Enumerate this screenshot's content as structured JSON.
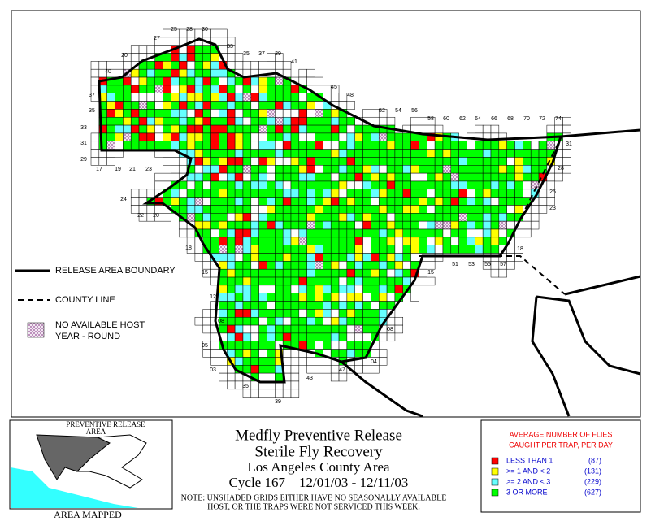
{
  "map": {
    "grid_labels": [
      "25",
      "28",
      "30",
      "27",
      "20",
      "33",
      "35",
      "37",
      "39",
      "41",
      "40",
      "45",
      "48",
      "37",
      "35",
      "33",
      "31",
      "29",
      "17",
      "19",
      "21",
      "23",
      "52",
      "54",
      "56",
      "58",
      "60",
      "62",
      "64",
      "66",
      "68",
      "70",
      "72",
      "74",
      "31",
      "28",
      "25",
      "23",
      "18",
      "51",
      "53",
      "55",
      "57",
      "15",
      "24",
      "22",
      "20",
      "18",
      "15",
      "12",
      "08",
      "05",
      "03",
      "35",
      "39",
      "43",
      "47",
      "04",
      "08"
    ]
  },
  "legend": {
    "boundary": "RELEASE AREA BOUNDARY",
    "county": "COUNTY LINE",
    "no_host": [
      "NO AVAILABLE HOST",
      "YEAR - ROUND"
    ]
  },
  "inset": {
    "label": [
      "PREVENTIVE RELEASE",
      "AREA"
    ],
    "caption": "AREA MAPPED"
  },
  "title": {
    "lines": [
      "Medfly Preventive Release",
      "Sterile Fly Recovery",
      "Los Angeles County Area",
      "Cycle 167    12/01/03 - 12/11/03"
    ],
    "note": [
      "NOTE: UNSHADED GRIDS EITHER HAVE NO SEASONALLY AVAILABLE",
      "HOST, OR THE TRAPS WERE NOT SERVICED THIS WEEK."
    ]
  },
  "key": {
    "header": [
      "AVERAGE NUMBER OF FLIES",
      "CAUGHT PER TRAP, PER DAY"
    ],
    "items": [
      {
        "label": "LESS THAN 1",
        "count": "(87)"
      },
      {
        "label": ">= 1 AND < 2",
        "count": "(131)"
      },
      {
        "label": ">= 2 AND < 3",
        "count": "(229)"
      },
      {
        "label": "3 OR MORE",
        "count": "(627)"
      }
    ]
  }
}
